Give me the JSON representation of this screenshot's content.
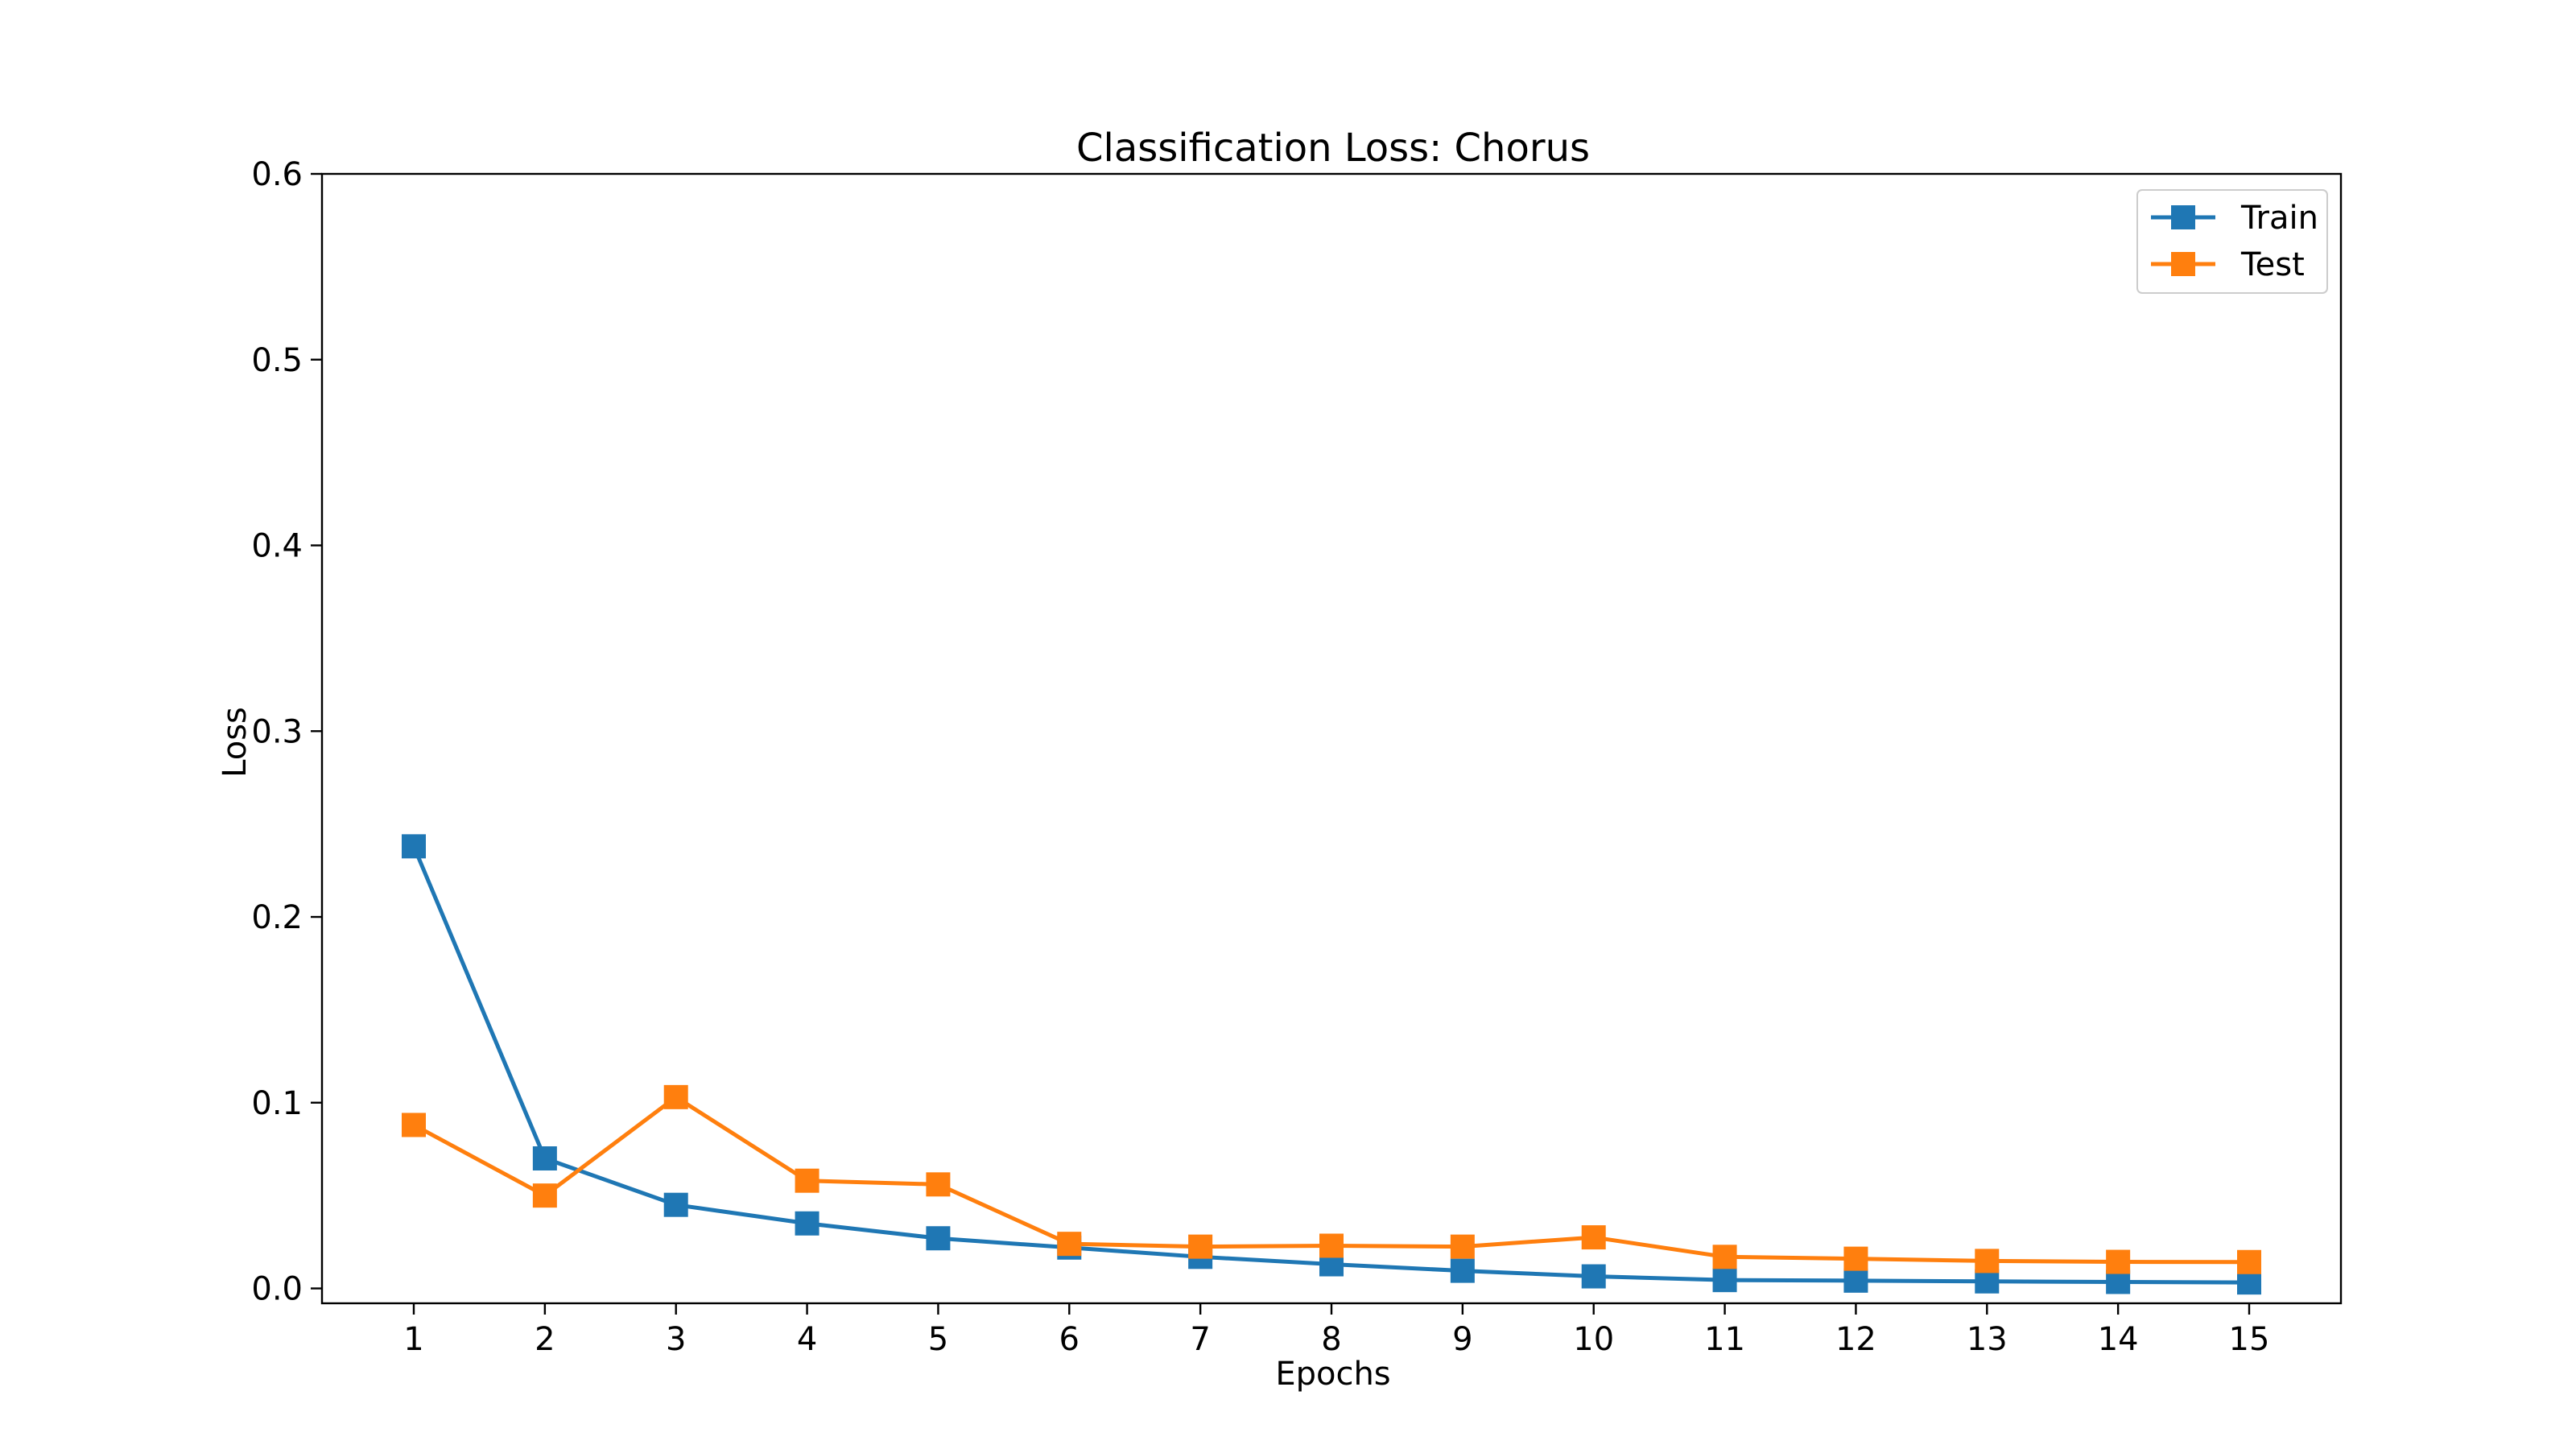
{
  "chart_data": {
    "type": "line",
    "title": "Classification Loss: Chorus",
    "xlabel": "Epochs",
    "ylabel": "Loss",
    "x": [
      1,
      2,
      3,
      4,
      5,
      6,
      7,
      8,
      9,
      10,
      11,
      12,
      13,
      14,
      15
    ],
    "x_ticks": [
      "1",
      "2",
      "3",
      "4",
      "5",
      "6",
      "7",
      "8",
      "9",
      "10",
      "11",
      "12",
      "13",
      "14",
      "15"
    ],
    "ylim": [
      -0.008,
      0.6
    ],
    "y_ticks": [
      "0.0",
      "0.1",
      "0.2",
      "0.3",
      "0.4",
      "0.5",
      "0.6"
    ],
    "xlim": [
      0.3,
      15.7
    ],
    "grid": false,
    "legend_position": "top-right",
    "marker": "square",
    "series": [
      {
        "name": "Train",
        "color": "#1f77b4",
        "values": [
          0.238,
          0.07,
          0.045,
          0.035,
          0.027,
          0.022,
          0.017,
          0.013,
          0.0095,
          0.0065,
          0.0045,
          0.0042,
          0.0038,
          0.0035,
          0.0032
        ]
      },
      {
        "name": "Test",
        "color": "#ff7f0e",
        "values": [
          0.088,
          0.05,
          0.103,
          0.058,
          0.056,
          0.024,
          0.0225,
          0.023,
          0.0225,
          0.0275,
          0.017,
          0.016,
          0.0148,
          0.0143,
          0.0142
        ]
      }
    ]
  }
}
